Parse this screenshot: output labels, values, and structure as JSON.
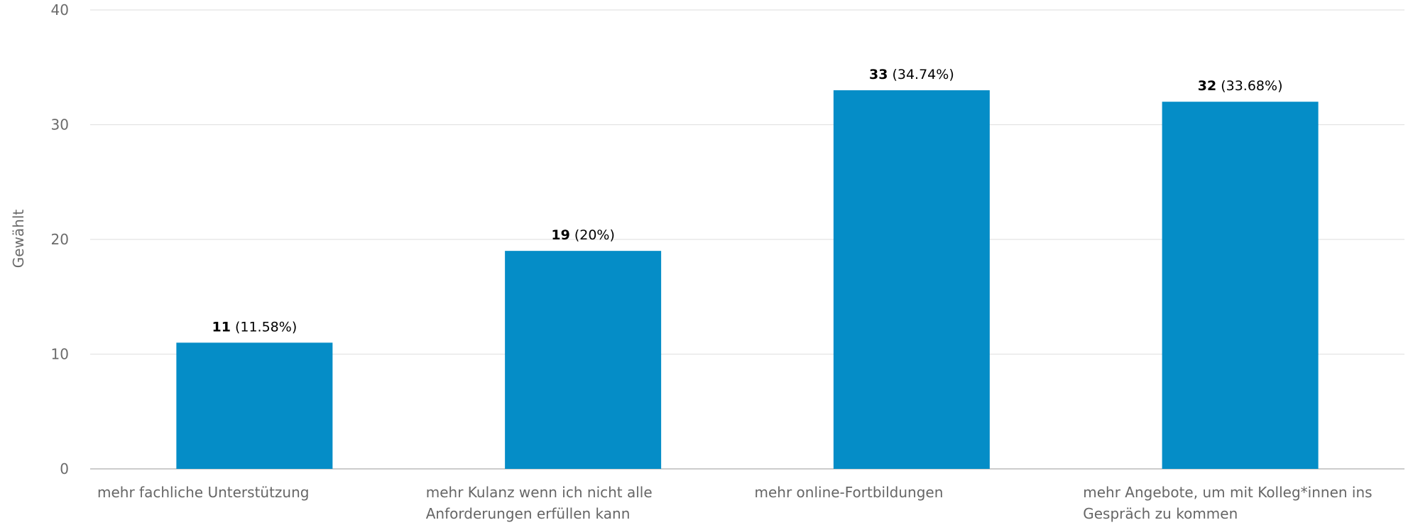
{
  "chart_data": {
    "type": "bar",
    "ylabel": "Gewählt",
    "xlabel": "",
    "ylim": [
      0,
      40
    ],
    "yticks": [
      0,
      10,
      20,
      30,
      40
    ],
    "grid": true,
    "colors": {
      "bar": "#058dc7",
      "grid": "#e3e3e3",
      "axis": "#cccccc"
    },
    "categories": [
      [
        "mehr fachliche Unterstützung"
      ],
      [
        "mehr Kulanz wenn ich nicht alle",
        "Anforderungen erfüllen kann"
      ],
      [
        "mehr online-Fortbildungen"
      ],
      [
        "mehr Angebote, um mit Kolleg*innen ins",
        "Gespräch zu kommen"
      ]
    ],
    "values": [
      11,
      19,
      33,
      32
    ],
    "percent_labels": [
      "(11.58%)",
      "(20%)",
      "(34.74%)",
      "(33.68%)"
    ]
  }
}
